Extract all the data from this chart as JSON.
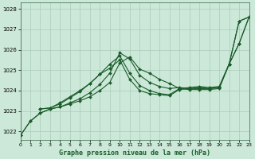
{
  "title": "Graphe pression niveau de la mer (hPa)",
  "background_color": "#cce8d8",
  "grid_color": "#aaccbb",
  "line_color": "#1a5c2a",
  "xlim": [
    0,
    23
  ],
  "ylim": [
    1021.6,
    1028.3
  ],
  "yticks": [
    1022,
    1023,
    1024,
    1025,
    1026,
    1027,
    1028
  ],
  "xticks": [
    0,
    1,
    2,
    3,
    4,
    5,
    6,
    7,
    8,
    9,
    10,
    11,
    12,
    13,
    14,
    15,
    16,
    17,
    18,
    19,
    20,
    21,
    22,
    23
  ],
  "series": [
    {
      "x": [
        0,
        1,
        2,
        3,
        4,
        5,
        6,
        7,
        8,
        9,
        10,
        11,
        12,
        13,
        14,
        15,
        16,
        17,
        18,
        19,
        20,
        21,
        22,
        23
      ],
      "y": [
        1021.8,
        1022.5,
        1022.9,
        1023.1,
        1023.2,
        1023.35,
        1023.5,
        1023.7,
        1024.0,
        1024.4,
        1025.35,
        1025.65,
        1025.05,
        1024.85,
        1024.55,
        1024.35,
        1024.1,
        1024.05,
        1024.05,
        1024.05,
        1024.1,
        1025.3,
        1027.4,
        1027.6
      ]
    },
    {
      "x": [
        0,
        1,
        2,
        3,
        4,
        5,
        6,
        7,
        8,
        9,
        10,
        11,
        12,
        13,
        14,
        15,
        16,
        17,
        18,
        19,
        20,
        21,
        22,
        23
      ],
      "y": [
        1021.8,
        1022.5,
        1022.9,
        1023.1,
        1023.2,
        1023.4,
        1023.6,
        1023.9,
        1024.3,
        1024.85,
        1025.85,
        1025.55,
        1024.75,
        1024.4,
        1024.2,
        1024.1,
        1024.15,
        1024.1,
        1024.1,
        1024.1,
        1024.15,
        1025.3,
        1027.4,
        1027.6
      ]
    },
    {
      "x": [
        2,
        3,
        4,
        5,
        6,
        7,
        8,
        9,
        10,
        11,
        12,
        13,
        14,
        15,
        16,
        17,
        18,
        19,
        20,
        21,
        22,
        23
      ],
      "y": [
        1023.1,
        1023.15,
        1023.35,
        1023.65,
        1023.95,
        1024.35,
        1024.8,
        1025.3,
        1025.7,
        1024.85,
        1024.25,
        1024.0,
        1023.85,
        1023.8,
        1024.1,
        1024.15,
        1024.2,
        1024.15,
        1024.2,
        1025.3,
        1026.3,
        1027.6
      ]
    },
    {
      "x": [
        2,
        3,
        4,
        5,
        6,
        7,
        8,
        9,
        10,
        11,
        12,
        13,
        14,
        15,
        16,
        17,
        18,
        19,
        20,
        21,
        22,
        23
      ],
      "y": [
        1023.1,
        1023.15,
        1023.4,
        1023.7,
        1024.0,
        1024.35,
        1024.8,
        1025.1,
        1025.5,
        1024.55,
        1024.0,
        1023.85,
        1023.8,
        1023.75,
        1024.05,
        1024.1,
        1024.15,
        1024.1,
        1024.15,
        1025.3,
        1026.3,
        1027.6
      ]
    }
  ]
}
